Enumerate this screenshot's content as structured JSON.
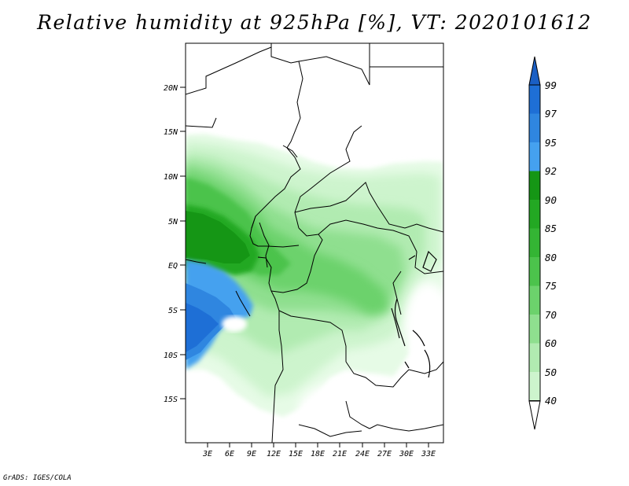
{
  "title": "Relative humidity at 925hPa [%], VT: 2020101612",
  "footer": "GrADS: IGES/COLA",
  "lat_ticks": [
    "20N",
    "15N",
    "10N",
    "5N",
    "EQ",
    "5S",
    "10S",
    "15S"
  ],
  "lon_ticks": [
    "3E",
    "6E",
    "9E",
    "12E",
    "15E",
    "18E",
    "21E",
    "24E",
    "27E",
    "30E",
    "33E"
  ],
  "colorbar": {
    "labels": [
      "99",
      "97",
      "95",
      "92",
      "90",
      "85",
      "80",
      "75",
      "70",
      "60",
      "50",
      "40"
    ],
    "colors": [
      "#1e6fd6",
      "#2f86e0",
      "#45a1ef",
      "#159615",
      "#23a823",
      "#34b534",
      "#4cc34c",
      "#6cd26c",
      "#8fdf8f",
      "#b1ebb1",
      "#cdf4cd",
      "#e6fbe6"
    ],
    "over_color": "#1a5fc4",
    "under_color": "#ffffff"
  }
}
